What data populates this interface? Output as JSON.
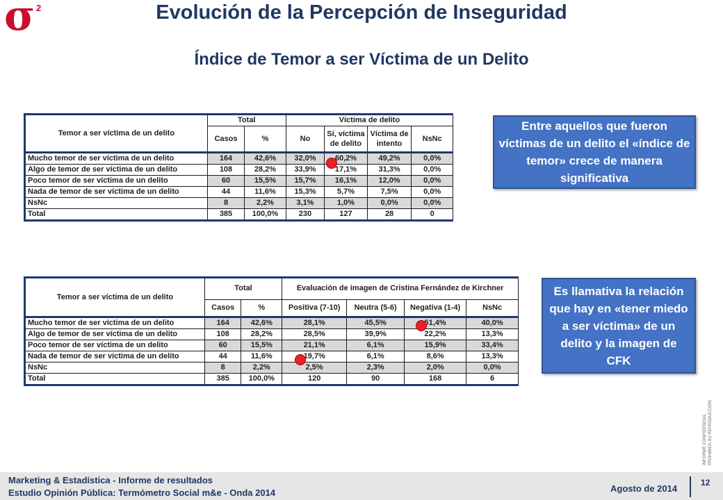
{
  "logo": {
    "symbol": "σ",
    "superscript": "2"
  },
  "header": {
    "title": "Evolución de la Percepción de Inseguridad",
    "subtitle": "Índice de Temor a ser Víctima de un Delito"
  },
  "table1": {
    "row_header": "Temor a ser víctima de un delito",
    "group_total": "Total",
    "group_victim": "Víctima de delito",
    "cols": [
      "Casos",
      "%",
      "No",
      "Sí, víctima de delito",
      "Víctima de intento",
      "NsNc"
    ],
    "rows": [
      {
        "label": "Mucho temor de ser víctima de un delito",
        "values": [
          "164",
          "42,6%",
          "32,0%",
          "60,2%",
          "49,2%",
          "0,0%"
        ]
      },
      {
        "label": "Algo de temor de ser víctima de un delito",
        "values": [
          "108",
          "28,2%",
          "33,9%",
          "17,1%",
          "31,3%",
          "0,0%"
        ]
      },
      {
        "label": "Poco temor de ser víctima de un delito",
        "values": [
          "60",
          "15,5%",
          "15,7%",
          "16,1%",
          "12,0%",
          "0,0%"
        ]
      },
      {
        "label": "Nada de temor de ser víctima de un delito",
        "values": [
          "44",
          "11,6%",
          "15,3%",
          "5,7%",
          "7,5%",
          "0,0%"
        ]
      },
      {
        "label": "NsNc",
        "values": [
          "8",
          "2,2%",
          "3,1%",
          "1,0%",
          "0,0%",
          "0,0%"
        ]
      },
      {
        "label": "Total",
        "values": [
          "385",
          "100,0%",
          "230",
          "127",
          "28",
          "0"
        ]
      }
    ]
  },
  "table2": {
    "row_header": "Temor a ser víctima de un delito",
    "group_total": "Total",
    "group_image": "Evaluación de imagen de Cristina Fernández de Kirchner",
    "cols": [
      "Casos",
      "%",
      "Positiva (7-10)",
      "Neutra (5-6)",
      "Negativa (1-4)",
      "NsNc"
    ],
    "rows": [
      {
        "label": "Mucho temor de ser víctima de un delito",
        "values": [
          "164",
          "42,6%",
          "28,1%",
          "45,5%",
          "51,4%",
          "40,0%"
        ]
      },
      {
        "label": "Algo de temor de ser víctima de un delito",
        "values": [
          "108",
          "28,2%",
          "28,5%",
          "39,9%",
          "22,2%",
          "13,3%"
        ]
      },
      {
        "label": "Poco temor de ser víctima de un delito",
        "values": [
          "60",
          "15,5%",
          "21,1%",
          "6,1%",
          "15,9%",
          "33,4%"
        ]
      },
      {
        "label": "Nada de temor de ser víctima de un delito",
        "values": [
          "44",
          "11,6%",
          "19,7%",
          "6,1%",
          "8,6%",
          "13,3%"
        ]
      },
      {
        "label": "NsNc",
        "values": [
          "8",
          "2,2%",
          "2,5%",
          "2,3%",
          "2,0%",
          "0,0%"
        ]
      },
      {
        "label": "Total",
        "values": [
          "385",
          "100,0%",
          "120",
          "90",
          "168",
          "6"
        ]
      }
    ]
  },
  "callouts": {
    "first": "Entre aquellos que fueron víctimas de un delito el «índice de temor» crece de manera significativa",
    "second": "Es llamativa la relación que hay en «tener miedo a ser víctima» de un delito y la imagen de CFK"
  },
  "side_note": {
    "line1": "INFORME CONFIDENCIAL",
    "line2": "PROHIBIDA SU REPRODUCCIÓN"
  },
  "footer": {
    "line1": "Marketing & Estadística - Informe de resultados",
    "line2": "Estudio Opinión Pública: Termómetro Social m&e - Onda 2014",
    "date": "Agosto de 2014",
    "page": "12"
  },
  "colors": {
    "title": "#1f3864",
    "callout": "#4472c4",
    "highlight_dot": "#e8222a",
    "logo": "#c8102e"
  }
}
